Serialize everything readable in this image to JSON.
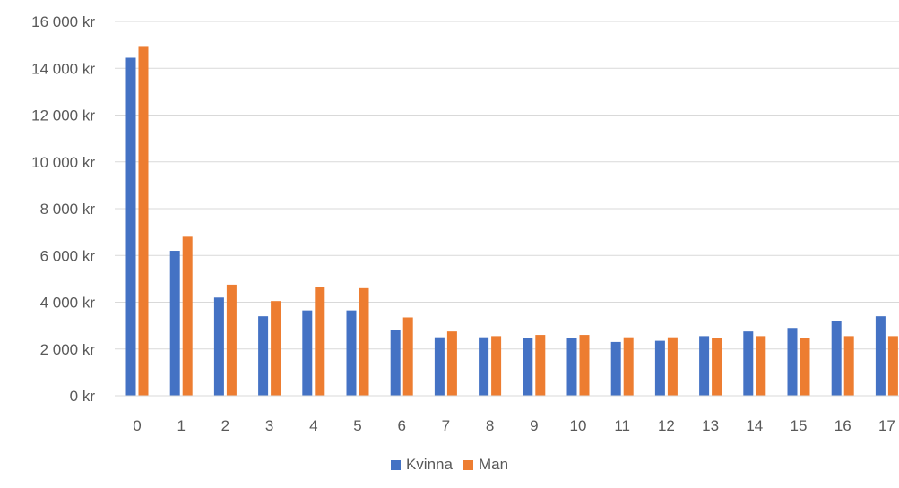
{
  "chart_data": {
    "type": "bar",
    "title": "",
    "xlabel": "",
    "ylabel": "",
    "categories": [
      "0",
      "1",
      "2",
      "3",
      "4",
      "5",
      "6",
      "7",
      "8",
      "9",
      "10",
      "11",
      "12",
      "13",
      "14",
      "15",
      "16",
      "17"
    ],
    "series": [
      {
        "name": "Kvinna",
        "color": "#4472C4",
        "values": [
          14450,
          6200,
          4200,
          3400,
          3650,
          3650,
          2800,
          2500,
          2500,
          2450,
          2450,
          2300,
          2350,
          2550,
          2750,
          2900,
          3200,
          3400
        ]
      },
      {
        "name": "Man",
        "color": "#ED7D31",
        "values": [
          14950,
          6800,
          4750,
          4050,
          4650,
          4600,
          3350,
          2750,
          2550,
          2600,
          2600,
          2500,
          2500,
          2450,
          2550,
          2450,
          2550,
          2550
        ]
      }
    ],
    "ylim": [
      0,
      16000
    ],
    "yticks": [
      0,
      2000,
      4000,
      6000,
      8000,
      10000,
      12000,
      14000,
      16000
    ],
    "ytick_labels": [
      "0 kr",
      "2 000 kr",
      "4 000 kr",
      "6 000 kr",
      "8 000 kr",
      "10 000 kr",
      "12 000 kr",
      "14 000 kr",
      "16 000 kr"
    ],
    "grid": true,
    "legend_position": "bottom"
  }
}
